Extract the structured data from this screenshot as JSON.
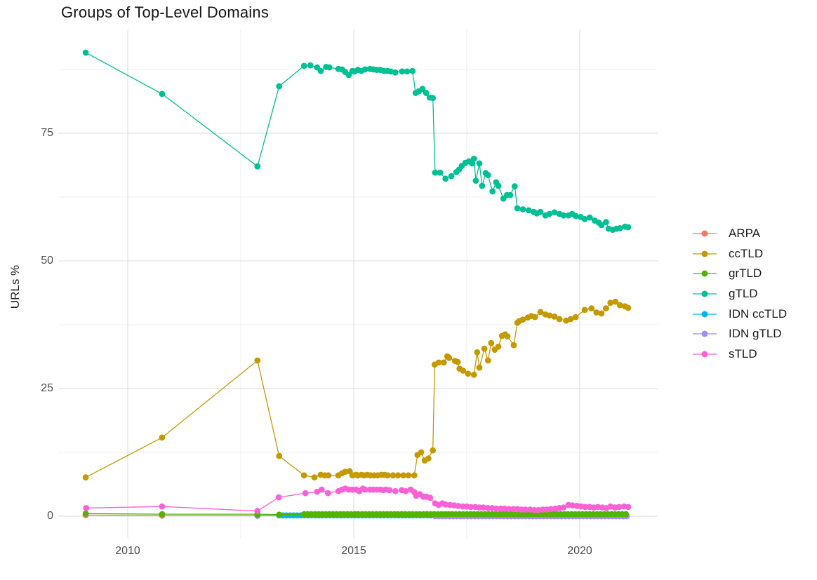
{
  "title": "Groups of Top-Level Domains",
  "axes": {
    "y_label": "URLs %",
    "y_ticks": [
      "0",
      "25",
      "50",
      "75"
    ],
    "x_ticks": [
      "2010",
      "2015",
      "2020"
    ]
  },
  "legend": {
    "items": [
      {
        "label": "ARPA",
        "color": "#F8766D"
      },
      {
        "label": "ccTLD",
        "color": "#C49A00"
      },
      {
        "label": "grTLD",
        "color": "#53B400"
      },
      {
        "label": "gTLD",
        "color": "#00C094"
      },
      {
        "label": "IDN ccTLD",
        "color": "#00B6EB"
      },
      {
        "label": "IDN gTLD",
        "color": "#A58AFF"
      },
      {
        "label": "sTLD",
        "color": "#FB61D7"
      }
    ]
  },
  "chart_data": {
    "type": "line",
    "title": "Groups of Top-Level Domains",
    "xlabel": "",
    "ylabel": "URLs %",
    "xlim": [
      2008.45,
      2021.7
    ],
    "ylim": [
      -4.5,
      95.3
    ],
    "x_ticks": [
      2010,
      2015,
      2020
    ],
    "y_ticks": [
      0,
      25,
      50,
      75
    ],
    "x_minor": [
      2012.5,
      2017.5
    ],
    "y_minor": [
      12.5,
      37.5,
      62.5,
      87.5
    ],
    "grid": true,
    "legend_position": "right",
    "grid_major_color": "#e2e2e2",
    "grid_minor_color": "#efefef",
    "series": [
      {
        "name": "ARPA",
        "color": "#F8766D",
        "points": [
          [
            2009.07,
            0.2
          ],
          [
            2010.76,
            0.1
          ],
          [
            2012.87,
            0.1
          ]
        ]
      },
      {
        "name": "IDN ccTLD",
        "color": "#00B6EB",
        "points": [
          [
            2012.87,
            0.15
          ]
        ],
        "run": {
          "from": 2013.35,
          "to": 2021.07,
          "step": 0.08,
          "value": 0.15
        }
      },
      {
        "name": "IDN gTLD",
        "color": "#A58AFF",
        "points": [],
        "run": {
          "from": 2016.8,
          "to": 2021.07,
          "step": 0.08,
          "value": 0.0
        }
      },
      {
        "name": "grTLD",
        "color": "#53B400",
        "points": [
          [
            2009.07,
            0.5
          ],
          [
            2010.76,
            0.4
          ],
          [
            2012.87,
            0.4
          ],
          [
            2013.35,
            0.3
          ]
        ],
        "run": {
          "from": 2013.9,
          "to": 2021.07,
          "step": 0.08,
          "value": 0.4
        }
      },
      {
        "name": "ccTLD",
        "color": "#C49A00",
        "points": [
          [
            2009.07,
            7.6
          ],
          [
            2010.76,
            15.4
          ],
          [
            2012.87,
            30.5
          ],
          [
            2013.35,
            11.8
          ],
          [
            2013.9,
            8.0
          ],
          [
            2014.13,
            7.6
          ],
          [
            2014.27,
            8.1
          ],
          [
            2014.36,
            8.0
          ],
          [
            2014.44,
            8.0
          ],
          [
            2014.66,
            8.0
          ],
          [
            2014.74,
            8.4
          ],
          [
            2014.81,
            8.7
          ],
          [
            2014.91,
            8.8
          ],
          [
            2014.97,
            8.0
          ],
          [
            2015.05,
            8.1
          ],
          [
            2015.09,
            8.0
          ],
          [
            2015.17,
            8.1
          ],
          [
            2015.23,
            8.0
          ],
          [
            2015.3,
            8.1
          ],
          [
            2015.37,
            8.0
          ],
          [
            2015.45,
            8.0
          ],
          [
            2015.53,
            8.0
          ],
          [
            2015.61,
            8.1
          ],
          [
            2015.68,
            8.1
          ],
          [
            2015.75,
            8.0
          ],
          [
            2015.87,
            8.0
          ],
          [
            2015.98,
            8.0
          ],
          [
            2016.1,
            8.0
          ],
          [
            2016.21,
            8.0
          ],
          [
            2016.34,
            8.0
          ],
          [
            2016.41,
            12.0
          ],
          [
            2016.49,
            12.5
          ],
          [
            2016.57,
            10.9
          ],
          [
            2016.65,
            11.3
          ],
          [
            2016.75,
            12.9
          ],
          [
            2016.79,
            29.7
          ],
          [
            2016.88,
            30.1
          ],
          [
            2016.99,
            30.1
          ],
          [
            2017.07,
            31.3
          ],
          [
            2017.11,
            31.0
          ],
          [
            2017.24,
            30.4
          ],
          [
            2017.3,
            30.2
          ],
          [
            2017.34,
            28.9
          ],
          [
            2017.42,
            28.5
          ],
          [
            2017.53,
            27.9
          ],
          [
            2017.66,
            27.7
          ],
          [
            2017.73,
            32.1
          ],
          [
            2017.78,
            29.1
          ],
          [
            2017.89,
            32.8
          ],
          [
            2017.97,
            30.5
          ],
          [
            2018.04,
            33.9
          ],
          [
            2018.12,
            32.6
          ],
          [
            2018.2,
            33.2
          ],
          [
            2018.28,
            35.3
          ],
          [
            2018.35,
            35.6
          ],
          [
            2018.4,
            35.2
          ],
          [
            2018.54,
            33.5
          ],
          [
            2018.62,
            37.9
          ],
          [
            2018.66,
            38.2
          ],
          [
            2018.74,
            38.5
          ],
          [
            2018.85,
            38.9
          ],
          [
            2018.93,
            39.2
          ],
          [
            2019.01,
            39.0
          ],
          [
            2019.13,
            40.0
          ],
          [
            2019.24,
            39.5
          ],
          [
            2019.33,
            39.3
          ],
          [
            2019.44,
            39.1
          ],
          [
            2019.55,
            38.6
          ],
          [
            2019.7,
            38.3
          ],
          [
            2019.8,
            38.6
          ],
          [
            2019.91,
            39.0
          ],
          [
            2020.11,
            40.4
          ],
          [
            2020.26,
            40.7
          ],
          [
            2020.37,
            39.9
          ],
          [
            2020.48,
            39.7
          ],
          [
            2020.58,
            40.7
          ],
          [
            2020.68,
            41.8
          ],
          [
            2020.79,
            42.0
          ],
          [
            2020.89,
            41.3
          ],
          [
            2021.0,
            41.1
          ],
          [
            2021.07,
            40.8
          ]
        ]
      },
      {
        "name": "gTLD",
        "color": "#00C094",
        "points": [
          [
            2009.07,
            90.8
          ],
          [
            2010.76,
            82.7
          ],
          [
            2012.87,
            68.5
          ],
          [
            2013.35,
            84.2
          ],
          [
            2013.9,
            88.2
          ],
          [
            2014.04,
            88.3
          ],
          [
            2014.19,
            87.9
          ],
          [
            2014.27,
            87.2
          ],
          [
            2014.39,
            88.0
          ],
          [
            2014.46,
            87.9
          ],
          [
            2014.66,
            87.6
          ],
          [
            2014.74,
            87.5
          ],
          [
            2014.81,
            87.0
          ],
          [
            2014.89,
            86.4
          ],
          [
            2014.97,
            87.2
          ],
          [
            2015.02,
            87.1
          ],
          [
            2015.09,
            87.4
          ],
          [
            2015.17,
            87.2
          ],
          [
            2015.25,
            87.5
          ],
          [
            2015.36,
            87.6
          ],
          [
            2015.43,
            87.5
          ],
          [
            2015.51,
            87.4
          ],
          [
            2015.59,
            87.4
          ],
          [
            2015.67,
            87.2
          ],
          [
            2015.75,
            87.2
          ],
          [
            2015.82,
            87.1
          ],
          [
            2015.92,
            86.9
          ],
          [
            2016.07,
            87.1
          ],
          [
            2016.18,
            87.1
          ],
          [
            2016.3,
            87.2
          ],
          [
            2016.37,
            82.9
          ],
          [
            2016.44,
            83.2
          ],
          [
            2016.52,
            83.7
          ],
          [
            2016.6,
            82.9
          ],
          [
            2016.68,
            82.0
          ],
          [
            2016.75,
            81.9
          ],
          [
            2016.8,
            67.3
          ],
          [
            2016.91,
            67.3
          ],
          [
            2017.03,
            66.1
          ],
          [
            2017.16,
            66.6
          ],
          [
            2017.27,
            67.4
          ],
          [
            2017.33,
            67.9
          ],
          [
            2017.39,
            68.6
          ],
          [
            2017.47,
            69.2
          ],
          [
            2017.55,
            69.5
          ],
          [
            2017.62,
            69.1
          ],
          [
            2017.66,
            70.0
          ],
          [
            2017.7,
            65.7
          ],
          [
            2017.78,
            69.1
          ],
          [
            2017.84,
            64.7
          ],
          [
            2017.92,
            67.2
          ],
          [
            2017.97,
            66.8
          ],
          [
            2018.07,
            63.6
          ],
          [
            2018.15,
            65.4
          ],
          [
            2018.2,
            64.7
          ],
          [
            2018.31,
            62.2
          ],
          [
            2018.39,
            62.9
          ],
          [
            2018.46,
            62.9
          ],
          [
            2018.56,
            64.6
          ],
          [
            2018.62,
            60.3
          ],
          [
            2018.74,
            60.1
          ],
          [
            2018.87,
            59.9
          ],
          [
            2018.98,
            59.6
          ],
          [
            2019.05,
            59.3
          ],
          [
            2019.13,
            59.6
          ],
          [
            2019.24,
            58.9
          ],
          [
            2019.33,
            59.2
          ],
          [
            2019.44,
            59.5
          ],
          [
            2019.55,
            59.2
          ],
          [
            2019.64,
            58.9
          ],
          [
            2019.75,
            58.9
          ],
          [
            2019.83,
            59.2
          ],
          [
            2019.91,
            58.8
          ],
          [
            2020.02,
            58.6
          ],
          [
            2020.11,
            58.2
          ],
          [
            2020.22,
            58.5
          ],
          [
            2020.33,
            57.9
          ],
          [
            2020.42,
            57.5
          ],
          [
            2020.48,
            57.0
          ],
          [
            2020.58,
            57.6
          ],
          [
            2020.64,
            56.3
          ],
          [
            2020.73,
            56.1
          ],
          [
            2020.81,
            56.3
          ],
          [
            2020.89,
            56.4
          ],
          [
            2021.0,
            56.7
          ],
          [
            2021.07,
            56.6
          ]
        ]
      },
      {
        "name": "sTLD",
        "color": "#FB61D7",
        "points": [
          [
            2009.08,
            1.6
          ],
          [
            2010.76,
            1.9
          ],
          [
            2012.87,
            1.0
          ],
          [
            2013.34,
            3.7
          ],
          [
            2013.93,
            4.5
          ],
          [
            2014.19,
            4.8
          ],
          [
            2014.29,
            5.2
          ],
          [
            2014.43,
            4.5
          ],
          [
            2014.66,
            4.9
          ],
          [
            2014.74,
            5.2
          ],
          [
            2014.81,
            5.4
          ],
          [
            2014.89,
            5.2
          ],
          [
            2014.97,
            5.2
          ],
          [
            2015.05,
            5.2
          ],
          [
            2015.12,
            4.9
          ],
          [
            2015.2,
            5.4
          ],
          [
            2015.25,
            5.2
          ],
          [
            2015.36,
            5.2
          ],
          [
            2015.43,
            5.2
          ],
          [
            2015.51,
            5.2
          ],
          [
            2015.59,
            5.2
          ],
          [
            2015.65,
            5.1
          ],
          [
            2015.71,
            5.2
          ],
          [
            2015.79,
            5.1
          ],
          [
            2015.92,
            4.9
          ],
          [
            2016.06,
            5.1
          ],
          [
            2016.15,
            4.9
          ],
          [
            2016.26,
            5.2
          ],
          [
            2016.34,
            4.7
          ],
          [
            2016.38,
            4.0
          ],
          [
            2016.46,
            4.3
          ],
          [
            2016.54,
            3.8
          ],
          [
            2016.61,
            3.8
          ],
          [
            2016.69,
            3.6
          ],
          [
            2016.8,
            2.5
          ],
          [
            2016.88,
            2.2
          ],
          [
            2016.96,
            2.5
          ],
          [
            2017.03,
            2.3
          ],
          [
            2017.13,
            2.2
          ],
          [
            2017.22,
            2.1
          ],
          [
            2017.31,
            2.0
          ],
          [
            2017.41,
            1.9
          ],
          [
            2017.5,
            1.9
          ],
          [
            2017.59,
            1.8
          ],
          [
            2017.69,
            1.8
          ],
          [
            2017.78,
            1.7
          ],
          [
            2017.87,
            1.7
          ],
          [
            2017.97,
            1.6
          ],
          [
            2018.06,
            1.6
          ],
          [
            2018.15,
            1.5
          ],
          [
            2018.25,
            1.5
          ],
          [
            2018.34,
            1.5
          ],
          [
            2018.43,
            1.4
          ],
          [
            2018.53,
            1.4
          ],
          [
            2018.62,
            1.4
          ],
          [
            2018.71,
            1.3
          ],
          [
            2018.8,
            1.3
          ],
          [
            2018.9,
            1.3
          ],
          [
            2018.99,
            1.2
          ],
          [
            2019.08,
            1.2
          ],
          [
            2019.18,
            1.3
          ],
          [
            2019.27,
            1.3
          ],
          [
            2019.36,
            1.4
          ],
          [
            2019.46,
            1.5
          ],
          [
            2019.55,
            1.6
          ],
          [
            2019.64,
            1.7
          ],
          [
            2019.75,
            2.2
          ],
          [
            2019.84,
            2.1
          ],
          [
            2019.94,
            2.0
          ],
          [
            2020.03,
            1.9
          ],
          [
            2020.12,
            1.8
          ],
          [
            2020.22,
            1.8
          ],
          [
            2020.31,
            1.7
          ],
          [
            2020.4,
            1.8
          ],
          [
            2020.5,
            1.7
          ],
          [
            2020.59,
            1.6
          ],
          [
            2020.68,
            1.9
          ],
          [
            2020.78,
            1.7
          ],
          [
            2020.87,
            1.8
          ],
          [
            2020.98,
            1.9
          ],
          [
            2021.07,
            1.8
          ]
        ]
      }
    ]
  }
}
